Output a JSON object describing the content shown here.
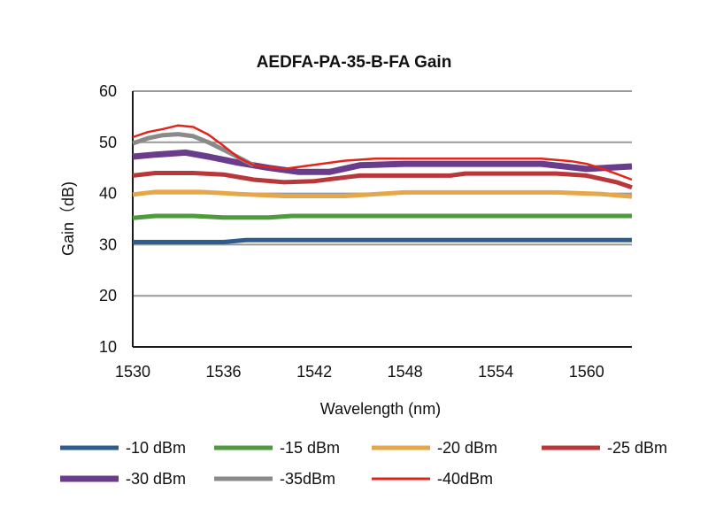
{
  "chart_data": {
    "type": "line",
    "title": "AEDFA-PA-35-B-FA Gain",
    "xlabel": "Wavelength (nm)",
    "ylabel": "Gain（dB)",
    "xlim": [
      1530,
      1563
    ],
    "ylim": [
      10,
      60
    ],
    "xticks": [
      1530,
      1536,
      1542,
      1548,
      1554,
      1560
    ],
    "yticks": [
      10,
      20,
      30,
      40,
      50,
      60
    ],
    "grid": true,
    "legend_position": "bottom",
    "series": [
      {
        "name": "-10 dBm",
        "color": "#2f5c8f",
        "width": 5,
        "x": [
          1530,
          1536,
          1537.5,
          1540,
          1541,
          1563
        ],
        "y": [
          30.5,
          30.5,
          30.9,
          30.9,
          30.9,
          30.9
        ]
      },
      {
        "name": "-15 dBm",
        "color": "#4f9a3c",
        "width": 5,
        "x": [
          1530,
          1531.5,
          1534,
          1536,
          1539,
          1540.5,
          1563
        ],
        "y": [
          35.2,
          35.6,
          35.6,
          35.3,
          35.3,
          35.6,
          35.6
        ]
      },
      {
        "name": "-20 dBm",
        "color": "#e6a64a",
        "width": 5,
        "x": [
          1530,
          1531.5,
          1534.5,
          1537,
          1540,
          1544,
          1548,
          1558,
          1561,
          1563
        ],
        "y": [
          39.8,
          40.3,
          40.3,
          39.9,
          39.5,
          39.5,
          40.2,
          40.2,
          39.9,
          39.4
        ]
      },
      {
        "name": "-25 dBm",
        "color": "#b8373a",
        "width": 5,
        "x": [
          1530,
          1531.5,
          1534,
          1536,
          1538,
          1540,
          1542,
          1545,
          1548,
          1551,
          1552,
          1554,
          1558,
          1560,
          1562,
          1563
        ],
        "y": [
          43.5,
          44.0,
          44.0,
          43.7,
          42.7,
          42.2,
          42.4,
          43.5,
          43.5,
          43.5,
          43.9,
          43.9,
          43.9,
          43.5,
          42.2,
          41.2
        ]
      },
      {
        "name": "-30 dBm",
        "color": "#6a3c8c",
        "width": 7,
        "x": [
          1530,
          1531.5,
          1533.5,
          1535,
          1537,
          1539,
          1541,
          1543,
          1545,
          1548,
          1551,
          1554,
          1557,
          1560,
          1563
        ],
        "y": [
          47.2,
          47.6,
          48.0,
          47.2,
          46.0,
          45.0,
          44.2,
          44.2,
          45.5,
          45.8,
          45.8,
          45.8,
          45.8,
          44.8,
          45.3
        ]
      },
      {
        "name": "-35dBm",
        "color": "#8a8a8a",
        "width": 5,
        "x": [
          1530,
          1531,
          1532,
          1533,
          1534,
          1535,
          1536.5,
          1538
        ],
        "y": [
          49.8,
          50.8,
          51.4,
          51.6,
          51.2,
          50.0,
          47.8,
          45.5
        ]
      },
      {
        "name": "-40dBm",
        "color": "#e1251b",
        "width": 2.5,
        "x": [
          1530,
          1531,
          1532,
          1533,
          1534,
          1535,
          1536,
          1537,
          1538,
          1540,
          1542,
          1544,
          1546,
          1549,
          1552,
          1555,
          1557,
          1559,
          1560,
          1561,
          1562,
          1563
        ],
        "y": [
          51.0,
          52.0,
          52.6,
          53.3,
          53.0,
          51.5,
          49.3,
          47.0,
          45.5,
          44.8,
          45.6,
          46.4,
          46.8,
          46.8,
          46.8,
          46.8,
          46.8,
          46.3,
          45.8,
          44.9,
          43.8,
          42.7
        ]
      }
    ]
  }
}
